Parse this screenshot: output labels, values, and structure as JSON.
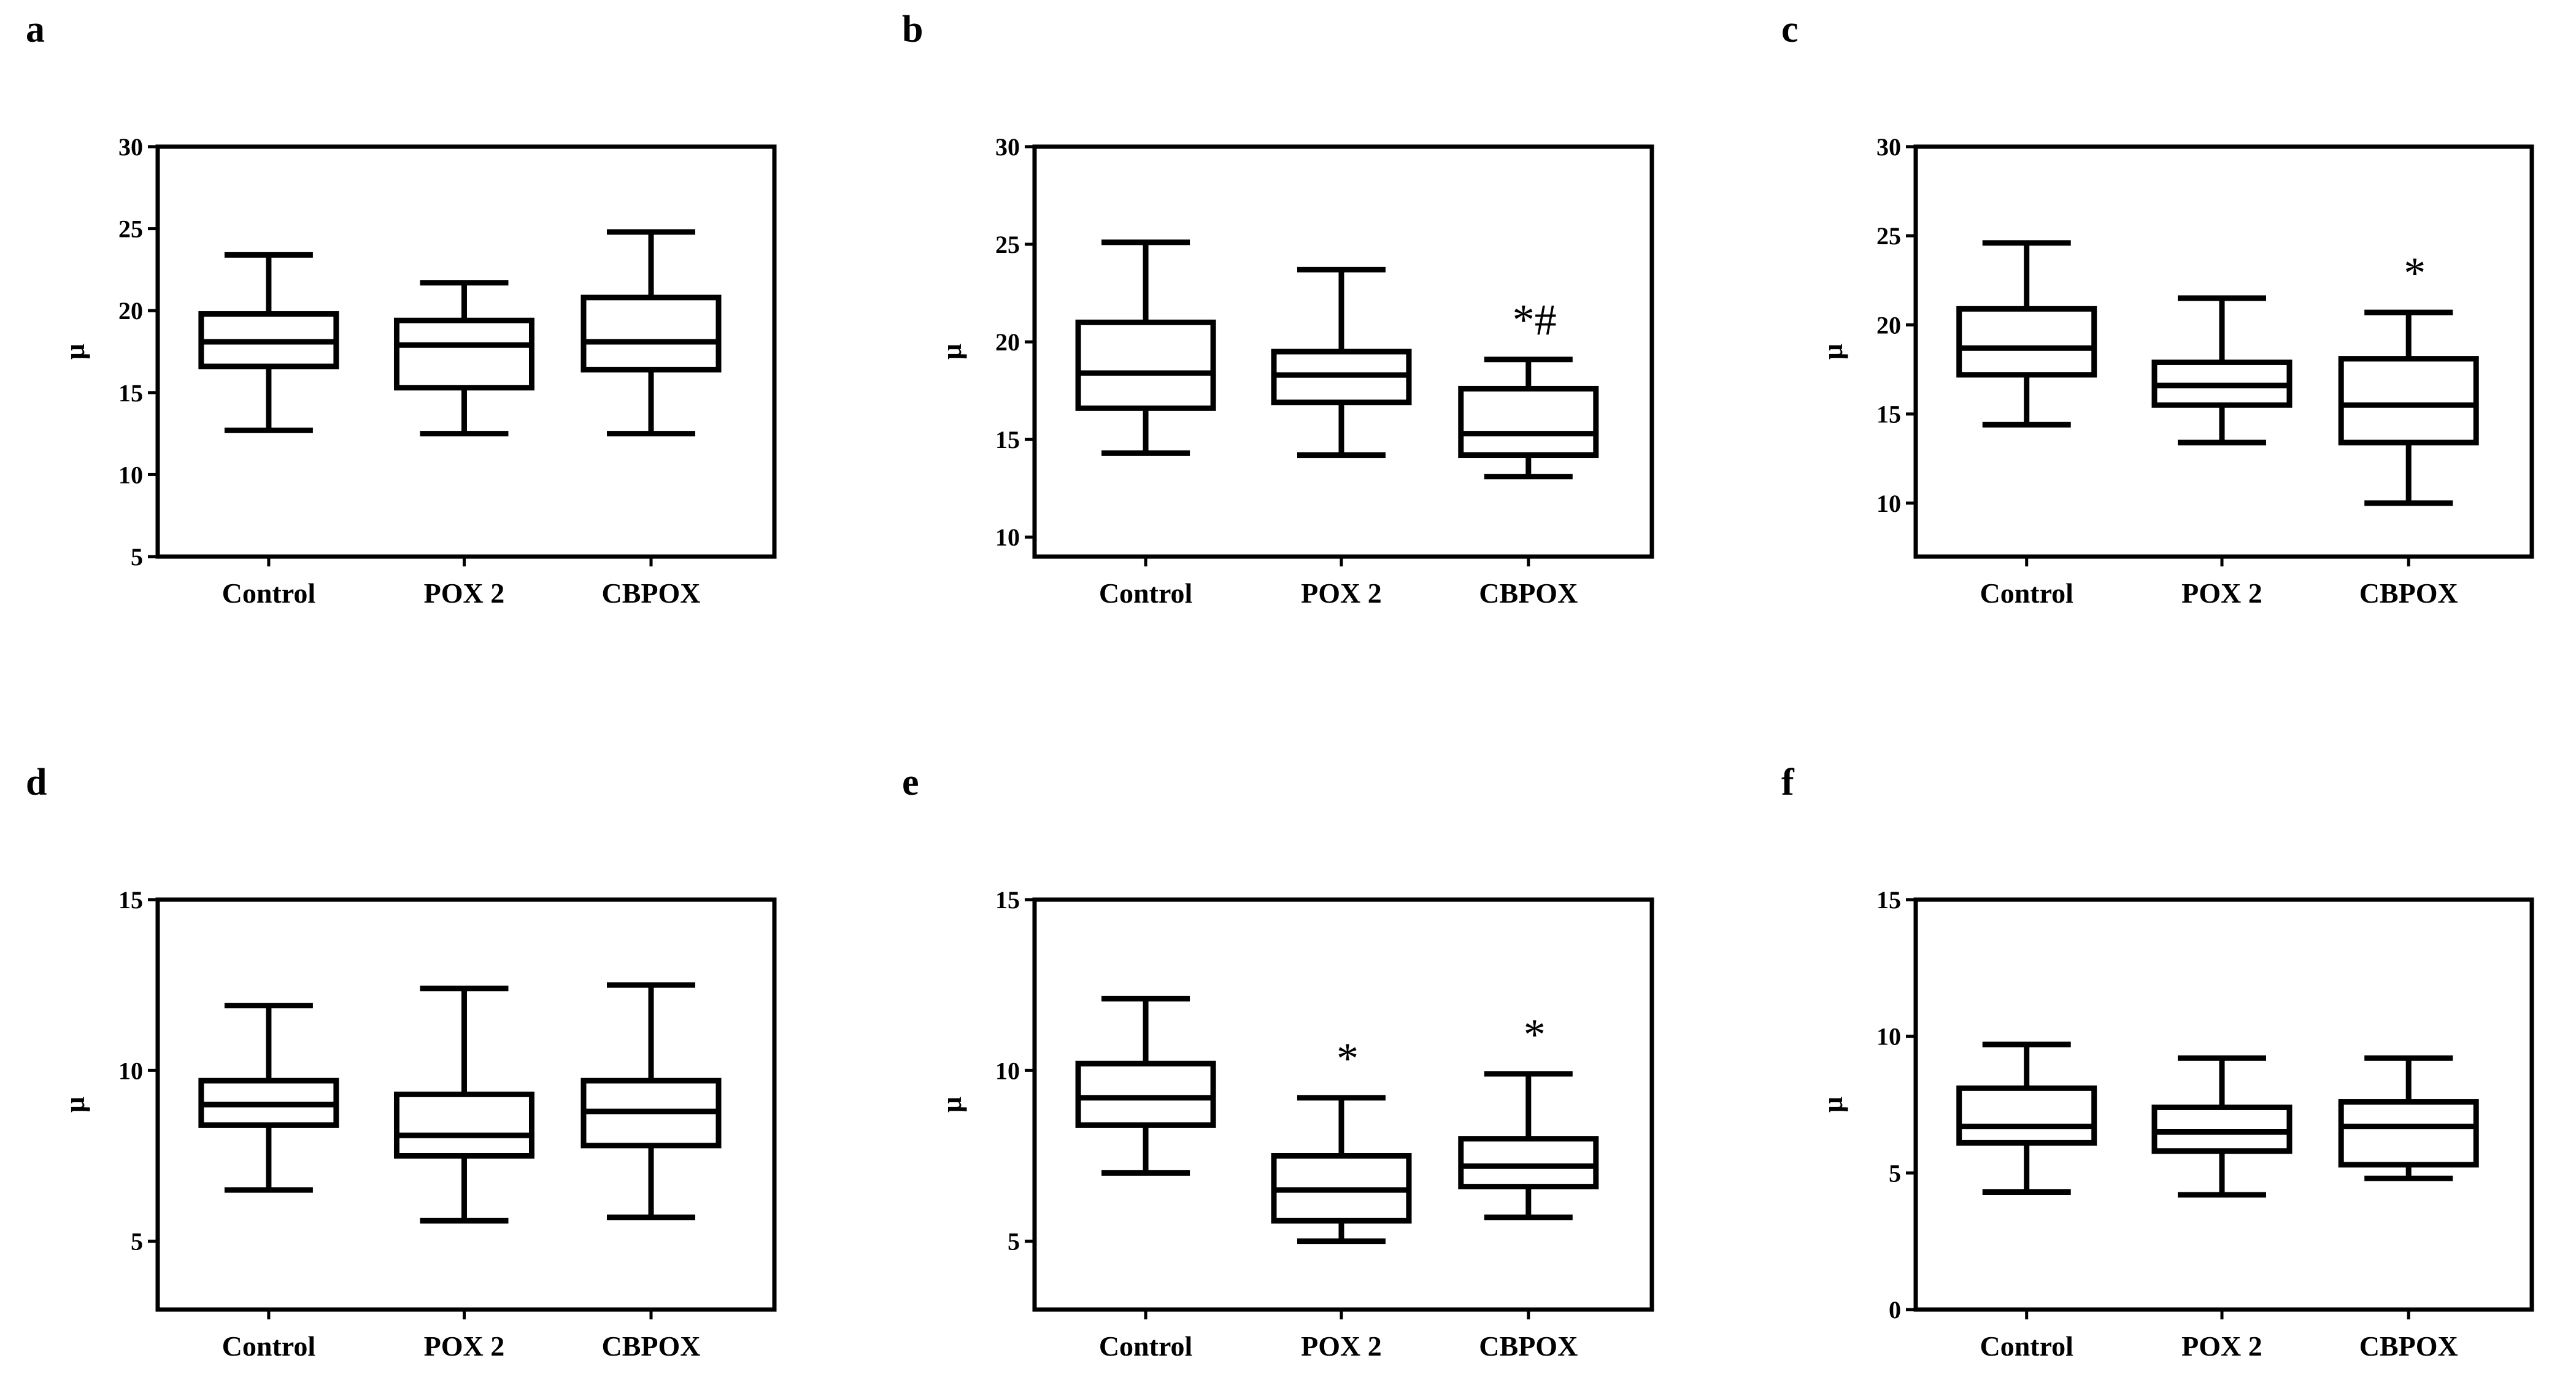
{
  "figure": {
    "panels": [
      {
        "label": "a",
        "ylabel": "μ",
        "ticks": [
          5,
          10,
          15,
          20,
          25,
          30
        ],
        "ylim": [
          5,
          30
        ],
        "categories": [
          "Control",
          "POX 2",
          "CBPOX"
        ],
        "boxes": [
          {
            "min": 12.7,
            "q1": 16.6,
            "median": 18.1,
            "q3": 19.8,
            "max": 23.4,
            "annotation": ""
          },
          {
            "min": 12.5,
            "q1": 15.3,
            "median": 17.9,
            "q3": 19.4,
            "max": 21.7,
            "annotation": ""
          },
          {
            "min": 12.5,
            "q1": 16.4,
            "median": 18.1,
            "q3": 20.8,
            "max": 24.8,
            "annotation": ""
          }
        ]
      },
      {
        "label": "b",
        "ylabel": "μ",
        "ticks": [
          10,
          15,
          20,
          25,
          30
        ],
        "ylim": [
          9,
          30
        ],
        "categories": [
          "Control",
          "POX 2",
          "CBPOX"
        ],
        "boxes": [
          {
            "min": 14.3,
            "q1": 16.6,
            "median": 18.4,
            "q3": 21.0,
            "max": 25.1,
            "annotation": ""
          },
          {
            "min": 14.2,
            "q1": 16.9,
            "median": 18.3,
            "q3": 19.5,
            "max": 23.7,
            "annotation": ""
          },
          {
            "min": 13.1,
            "q1": 14.2,
            "median": 15.3,
            "q3": 17.6,
            "max": 19.1,
            "annotation": "*#"
          }
        ]
      },
      {
        "label": "c",
        "ylabel": "μ",
        "ticks": [
          10,
          15,
          20,
          25,
          30
        ],
        "ylim": [
          7,
          30
        ],
        "categories": [
          "Control",
          "POX 2",
          "CBPOX"
        ],
        "boxes": [
          {
            "min": 14.4,
            "q1": 17.2,
            "median": 18.7,
            "q3": 20.9,
            "max": 24.6,
            "annotation": ""
          },
          {
            "min": 13.4,
            "q1": 15.5,
            "median": 16.6,
            "q3": 17.9,
            "max": 21.5,
            "annotation": ""
          },
          {
            "min": 10.0,
            "q1": 13.4,
            "median": 15.5,
            "q3": 18.1,
            "max": 20.7,
            "annotation": "*"
          }
        ]
      },
      {
        "label": "d",
        "ylabel": "μ",
        "ticks": [
          5,
          10,
          15
        ],
        "ylim": [
          3,
          15
        ],
        "categories": [
          "Control",
          "POX 2",
          "CBPOX"
        ],
        "boxes": [
          {
            "min": 6.5,
            "q1": 8.4,
            "median": 9.0,
            "q3": 9.7,
            "max": 11.9,
            "annotation": ""
          },
          {
            "min": 5.6,
            "q1": 7.5,
            "median": 8.1,
            "q3": 9.3,
            "max": 12.4,
            "annotation": ""
          },
          {
            "min": 5.7,
            "q1": 7.8,
            "median": 8.8,
            "q3": 9.7,
            "max": 12.5,
            "annotation": ""
          }
        ]
      },
      {
        "label": "e",
        "ylabel": "μ",
        "ticks": [
          5,
          10,
          15
        ],
        "ylim": [
          3,
          15
        ],
        "categories": [
          "Control",
          "POX 2",
          "CBPOX"
        ],
        "boxes": [
          {
            "min": 7.0,
            "q1": 8.4,
            "median": 9.2,
            "q3": 10.2,
            "max": 12.1,
            "annotation": ""
          },
          {
            "min": 5.0,
            "q1": 5.6,
            "median": 6.5,
            "q3": 7.5,
            "max": 9.2,
            "annotation": "*"
          },
          {
            "min": 5.7,
            "q1": 6.6,
            "median": 7.2,
            "q3": 8.0,
            "max": 9.9,
            "annotation": "*"
          }
        ]
      },
      {
        "label": "f",
        "ylabel": "μ",
        "ticks": [
          0,
          5,
          10,
          15
        ],
        "ylim": [
          0,
          15
        ],
        "categories": [
          "Control",
          "POX 2",
          "CBPOX"
        ],
        "boxes": [
          {
            "min": 4.3,
            "q1": 6.1,
            "median": 6.7,
            "q3": 8.1,
            "max": 9.7,
            "annotation": ""
          },
          {
            "min": 4.2,
            "q1": 5.8,
            "median": 6.5,
            "q3": 7.4,
            "max": 9.2,
            "annotation": ""
          },
          {
            "min": 4.8,
            "q1": 5.3,
            "median": 6.7,
            "q3": 7.6,
            "max": 9.2,
            "annotation": ""
          }
        ]
      }
    ]
  },
  "chart_data": [
    {
      "type": "box",
      "panel": "a",
      "categories": [
        "Control",
        "POX 2",
        "CBPOX"
      ],
      "ylabel": "μ",
      "ylim": [
        5,
        30
      ],
      "series": [
        {
          "values": [
            [
              12.7,
              16.6,
              18.1,
              19.8,
              23.4
            ],
            [
              12.5,
              15.3,
              17.9,
              19.4,
              21.7
            ],
            [
              12.5,
              16.4,
              18.1,
              20.8,
              24.8
            ]
          ]
        }
      ]
    },
    {
      "type": "box",
      "panel": "b",
      "categories": [
        "Control",
        "POX 2",
        "CBPOX"
      ],
      "ylabel": "μ",
      "ylim": [
        9,
        30
      ],
      "series": [
        {
          "values": [
            [
              14.3,
              16.6,
              18.4,
              21.0,
              25.1
            ],
            [
              14.2,
              16.9,
              18.3,
              19.5,
              23.7
            ],
            [
              13.1,
              14.2,
              15.3,
              17.6,
              19.1
            ]
          ]
        }
      ],
      "annotations": [
        "",
        "",
        "*#"
      ]
    },
    {
      "type": "box",
      "panel": "c",
      "categories": [
        "Control",
        "POX 2",
        "CBPOX"
      ],
      "ylabel": "μ",
      "ylim": [
        7,
        30
      ],
      "series": [
        {
          "values": [
            [
              14.4,
              17.2,
              18.7,
              20.9,
              24.6
            ],
            [
              13.4,
              15.5,
              16.6,
              17.9,
              21.5
            ],
            [
              10.0,
              13.4,
              15.5,
              18.1,
              20.7
            ]
          ]
        }
      ],
      "annotations": [
        "",
        "",
        "*"
      ]
    },
    {
      "type": "box",
      "panel": "d",
      "categories": [
        "Control",
        "POX 2",
        "CBPOX"
      ],
      "ylabel": "μ",
      "ylim": [
        3,
        15
      ],
      "series": [
        {
          "values": [
            [
              6.5,
              8.4,
              9.0,
              9.7,
              11.9
            ],
            [
              5.6,
              7.5,
              8.1,
              9.3,
              12.4
            ],
            [
              5.7,
              7.8,
              8.8,
              9.7,
              12.5
            ]
          ]
        }
      ]
    },
    {
      "type": "box",
      "panel": "e",
      "categories": [
        "Control",
        "POX 2",
        "CBPOX"
      ],
      "ylabel": "μ",
      "ylim": [
        3,
        15
      ],
      "series": [
        {
          "values": [
            [
              7.0,
              8.4,
              9.2,
              10.2,
              12.1
            ],
            [
              5.0,
              5.6,
              6.5,
              7.5,
              9.2
            ],
            [
              5.7,
              6.6,
              7.2,
              8.0,
              9.9
            ]
          ]
        }
      ],
      "annotations": [
        "",
        "*",
        "*"
      ]
    },
    {
      "type": "box",
      "panel": "f",
      "categories": [
        "Control",
        "POX 2",
        "CBPOX"
      ],
      "ylabel": "μ",
      "ylim": [
        0,
        15
      ],
      "series": [
        {
          "values": [
            [
              4.3,
              6.1,
              6.7,
              8.1,
              9.7
            ],
            [
              4.2,
              5.8,
              6.5,
              7.4,
              9.2
            ],
            [
              4.8,
              5.3,
              6.7,
              7.6,
              9.2
            ]
          ]
        }
      ]
    }
  ]
}
